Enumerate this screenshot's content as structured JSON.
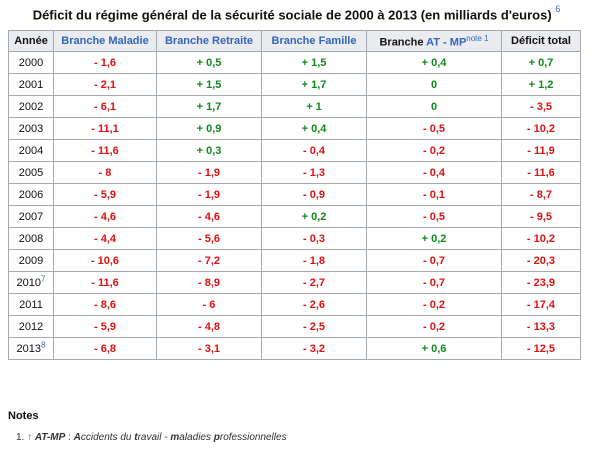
{
  "caption": {
    "title": "Déficit du régime général de la sécurité sociale de 2000 à 2013 (en milliards d'euros)",
    "ref": "6"
  },
  "headers": {
    "annee": "Année",
    "maladie": "Branche Maladie",
    "retraite": "Branche Retraite",
    "famille": "Branche Famille",
    "atmp_prefix": "Branche",
    "atmp_link": "AT - MP",
    "atmp_note": "note 1",
    "total": "Déficit total"
  },
  "colors": {
    "negative": "#dd1111",
    "positive": "#11881e",
    "link": "#3366bb",
    "header_bg": "#eaecf0",
    "border": "#a2a9b1"
  },
  "rows": [
    {
      "year": "2000",
      "ref": "",
      "maladie": "- 1,6",
      "retraite": "+ 0,5",
      "famille": "+ 1,5",
      "atmp": "+ 0,4",
      "total": "+ 0,7"
    },
    {
      "year": "2001",
      "ref": "",
      "maladie": "- 2,1",
      "retraite": "+ 1,5",
      "famille": "+ 1,7",
      "atmp": "0",
      "total": "+ 1,2"
    },
    {
      "year": "2002",
      "ref": "",
      "maladie": "- 6,1",
      "retraite": "+ 1,7",
      "famille": "+ 1",
      "atmp": "0",
      "total": "- 3,5"
    },
    {
      "year": "2003",
      "ref": "",
      "maladie": "- 11,1",
      "retraite": "+ 0,9",
      "famille": "+ 0,4",
      "atmp": "- 0,5",
      "total": "- 10,2"
    },
    {
      "year": "2004",
      "ref": "",
      "maladie": "- 11,6",
      "retraite": "+ 0,3",
      "famille": "- 0,4",
      "atmp": "- 0,2",
      "total": "- 11,9"
    },
    {
      "year": "2005",
      "ref": "",
      "maladie": "- 8",
      "retraite": "- 1,9",
      "famille": "- 1,3",
      "atmp": "- 0,4",
      "total": "- 11,6"
    },
    {
      "year": "2006",
      "ref": "",
      "maladie": "- 5,9",
      "retraite": "- 1,9",
      "famille": "- 0,9",
      "atmp": "- 0,1",
      "total": "- 8,7"
    },
    {
      "year": "2007",
      "ref": "",
      "maladie": "- 4,6",
      "retraite": "- 4,6",
      "famille": "+ 0,2",
      "atmp": "- 0,5",
      "total": "- 9,5"
    },
    {
      "year": "2008",
      "ref": "",
      "maladie": "- 4,4",
      "retraite": "- 5,6",
      "famille": "- 0,3",
      "atmp": "+ 0,2",
      "total": "- 10,2"
    },
    {
      "year": "2009",
      "ref": "",
      "maladie": "- 10,6",
      "retraite": "- 7,2",
      "famille": "- 1,8",
      "atmp": "- 0,7",
      "total": "- 20,3"
    },
    {
      "year": "2010",
      "ref": "7",
      "maladie": "- 11,6",
      "retraite": "- 8,9",
      "famille": "- 2,7",
      "atmp": "- 0,7",
      "total": "- 23,9"
    },
    {
      "year": "2011",
      "ref": "",
      "maladie": "- 8,6",
      "retraite": "- 6",
      "famille": "- 2,6",
      "atmp": "- 0,2",
      "total": "- 17,4"
    },
    {
      "year": "2012",
      "ref": "",
      "maladie": "- 5,9",
      "retraite": "- 4,8",
      "famille": "- 2,5",
      "atmp": "- 0,2",
      "total": "- 13,3"
    },
    {
      "year": "2013",
      "ref": "8",
      "maladie": "- 6,8",
      "retraite": "- 3,1",
      "famille": "- 3,2",
      "atmp": "+ 0,6",
      "total": "- 12,5"
    }
  ],
  "notes": {
    "heading": "Notes",
    "number": "1.",
    "arrow": "↑",
    "abbr": "AT-MP",
    "sep": " : ",
    "parts": [
      {
        "t": "A",
        "bold": true
      },
      {
        "t": "ccidents du ",
        "bold": false
      },
      {
        "t": "t",
        "bold": true
      },
      {
        "t": "ravail - ",
        "bold": false
      },
      {
        "t": "m",
        "bold": true
      },
      {
        "t": "aladies ",
        "bold": false
      },
      {
        "t": "p",
        "bold": true
      },
      {
        "t": "rofessionnelles",
        "bold": false
      }
    ]
  }
}
